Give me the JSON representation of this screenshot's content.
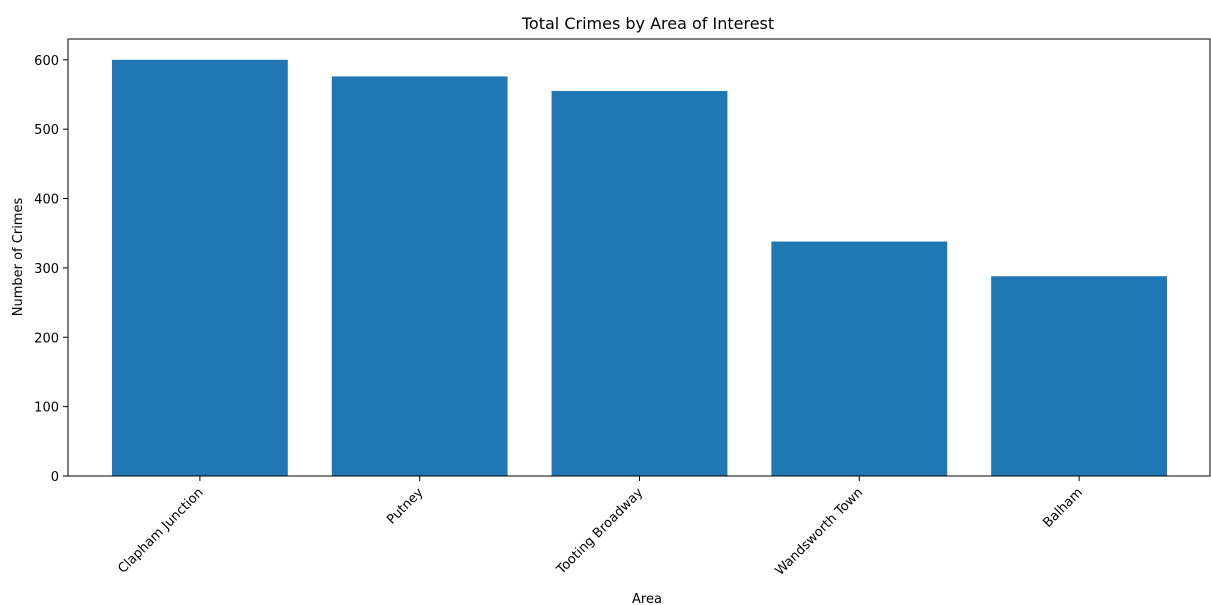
{
  "chart_data": {
    "type": "bar",
    "title": "Total Crimes by Area of Interest",
    "xlabel": "Area",
    "ylabel": "Number of Crimes",
    "categories": [
      "Clapham Junction",
      "Putney",
      "Tooting Broadway",
      "Wandsworth Town",
      "Balham"
    ],
    "values": [
      600,
      576,
      555,
      338,
      288
    ],
    "ylim": [
      0,
      630
    ],
    "yticks": [
      0,
      100,
      200,
      300,
      400,
      500,
      600
    ],
    "grid": false,
    "colors": {
      "bar": "#1f77b4",
      "axis": "#000000"
    }
  }
}
